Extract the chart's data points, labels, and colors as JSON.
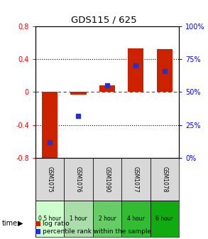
{
  "title": "GDS115 / 625",
  "samples": [
    "GSM1075",
    "GSM1076",
    "GSM1090",
    "GSM1077",
    "GSM1078"
  ],
  "time_labels": [
    "0.5 hour",
    "1 hour",
    "2 hour",
    "4 hour",
    "6 hour"
  ],
  "time_colors": [
    "#ccffcc",
    "#aaddaa",
    "#88cc88",
    "#44bb44",
    "#22aa22"
  ],
  "log_ratio": [
    -0.85,
    -0.03,
    0.08,
    0.53,
    0.52
  ],
  "percentile": [
    12,
    32,
    55,
    70,
    66
  ],
  "ylim_left": [
    -0.8,
    0.8
  ],
  "ylim_right": [
    0,
    100
  ],
  "bar_color": "#cc2200",
  "square_color": "#2233cc",
  "legend_log": "log ratio",
  "legend_pct": "percentile rank within the sample",
  "bar_width": 0.55
}
